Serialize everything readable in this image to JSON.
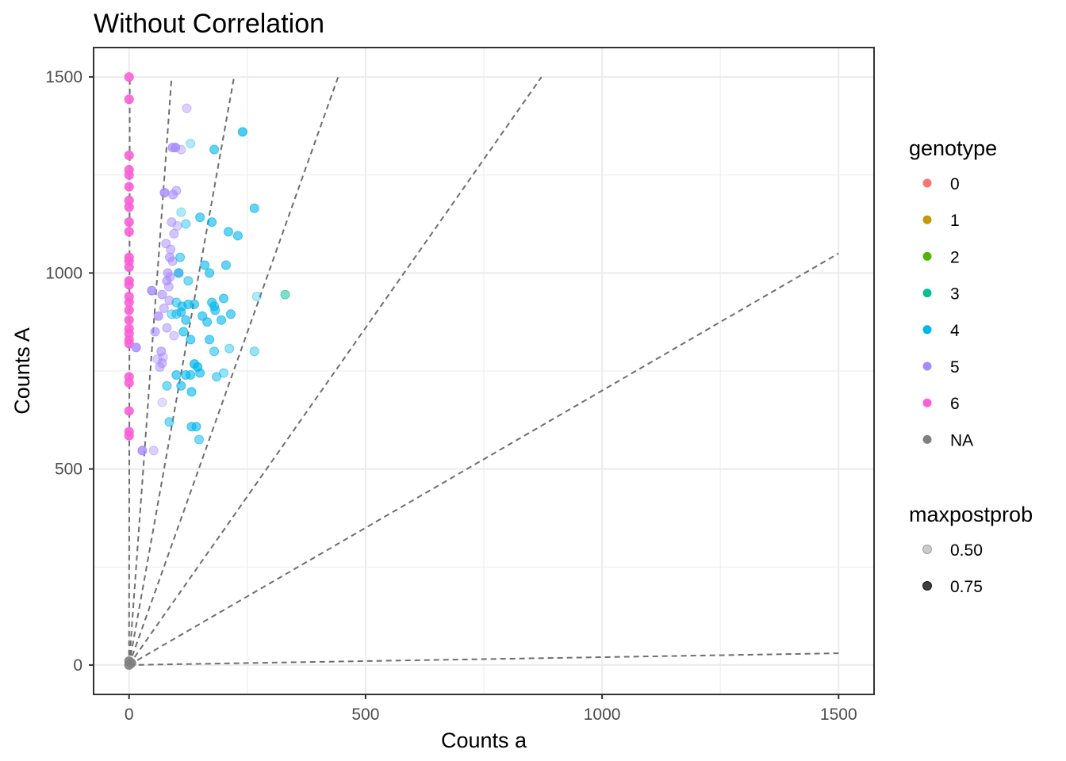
{
  "chart_data": {
    "type": "scatter",
    "title": "Without Correlation",
    "xlabel": "Counts a",
    "ylabel": "Counts A",
    "xlim": [
      -75,
      1575
    ],
    "ylim": [
      -75,
      1575
    ],
    "x_ticks": [
      0,
      500,
      1000,
      1500
    ],
    "y_ticks": [
      0,
      500,
      1000,
      1500
    ],
    "x_tick_labels": [
      "0",
      "500",
      "1000",
      "1500"
    ],
    "y_tick_labels": [
      "0",
      "500",
      "1000",
      "1500"
    ],
    "grid": true,
    "reference_lines": [
      {
        "x": [
          0,
          1.5
        ],
        "y": [
          0,
          1500
        ]
      },
      {
        "x": [
          0,
          90
        ],
        "y": [
          0,
          1500
        ]
      },
      {
        "x": [
          0,
          222
        ],
        "y": [
          0,
          1500
        ]
      },
      {
        "x": [
          0,
          442
        ],
        "y": [
          0,
          1500
        ]
      },
      {
        "x": [
          0,
          872
        ],
        "y": [
          0,
          1500
        ]
      },
      {
        "x": [
          0,
          1500
        ],
        "y": [
          0,
          1050
        ]
      },
      {
        "x": [
          0,
          1500
        ],
        "y": [
          0,
          30
        ]
      }
    ],
    "series": [
      {
        "name": "6",
        "points": [
          [
            0,
            1500,
            0.9
          ],
          [
            0,
            1443,
            0.9
          ],
          [
            0,
            1300,
            0.9
          ],
          [
            0,
            1263,
            0.9
          ],
          [
            0,
            1250,
            0.9
          ],
          [
            0,
            1220,
            0.9
          ],
          [
            0,
            1185,
            0.9
          ],
          [
            0,
            1168,
            0.9
          ],
          [
            0,
            1130,
            0.9
          ],
          [
            0,
            1105,
            0.9
          ],
          [
            0,
            1040,
            0.9
          ],
          [
            0,
            1030,
            0.9
          ],
          [
            0,
            1015,
            0.9
          ],
          [
            0,
            980,
            0.9
          ],
          [
            0,
            970,
            0.9
          ],
          [
            0,
            940,
            0.9
          ],
          [
            0,
            925,
            0.9
          ],
          [
            0,
            905,
            0.9
          ],
          [
            0,
            880,
            0.9
          ],
          [
            0,
            858,
            0.9
          ],
          [
            0,
            845,
            0.9
          ],
          [
            0,
            830,
            0.9
          ],
          [
            0,
            820,
            0.9
          ],
          [
            0,
            735,
            0.9
          ],
          [
            0,
            720,
            0.9
          ],
          [
            0,
            648,
            0.9
          ],
          [
            0,
            595,
            0.9
          ],
          [
            0,
            585,
            0.9
          ]
        ]
      },
      {
        "name": "5",
        "points": [
          [
            15,
            810,
            0.8
          ],
          [
            28,
            547,
            0.8
          ],
          [
            48,
            955,
            0.8
          ],
          [
            52,
            547,
            0.4
          ],
          [
            55,
            850,
            0.6
          ],
          [
            62,
            890,
            0.7
          ],
          [
            68,
            800,
            0.6
          ],
          [
            70,
            945,
            0.6
          ],
          [
            75,
            1205,
            0.8
          ],
          [
            78,
            1075,
            0.5
          ],
          [
            80,
            980,
            0.6
          ],
          [
            82,
            1000,
            0.6
          ],
          [
            84,
            965,
            0.5
          ],
          [
            86,
            1040,
            0.6
          ],
          [
            88,
            1060,
            0.5
          ],
          [
            90,
            1130,
            0.5
          ],
          [
            92,
            1320,
            0.7
          ],
          [
            93,
            1200,
            0.6
          ],
          [
            95,
            1100,
            0.5
          ],
          [
            98,
            1320,
            0.8
          ],
          [
            100,
            1210,
            0.5
          ],
          [
            102,
            1120,
            0.4
          ],
          [
            110,
            1315,
            0.4
          ],
          [
            122,
            1420,
            0.4
          ],
          [
            65,
            760,
            0.5
          ],
          [
            70,
            770,
            0.5
          ],
          [
            72,
            785,
            0.4
          ],
          [
            80,
            860,
            0.5
          ],
          [
            74,
            910,
            0.5
          ],
          [
            85,
            930,
            0.5
          ],
          [
            87,
            990,
            0.5
          ],
          [
            92,
            1030,
            0.5
          ],
          [
            105,
            1000,
            0.5
          ],
          [
            70,
            670,
            0.3
          ],
          [
            95,
            840,
            0.4
          ],
          [
            60,
            780,
            0.4
          ]
        ]
      },
      {
        "name": "4",
        "points": [
          [
            85,
            620,
            0.5
          ],
          [
            80,
            712,
            0.5
          ],
          [
            100,
            740,
            0.6
          ],
          [
            110,
            712,
            0.6
          ],
          [
            120,
            740,
            0.6
          ],
          [
            130,
            740,
            0.6
          ],
          [
            132,
            608,
            0.6
          ],
          [
            142,
            608,
            0.6
          ],
          [
            148,
            575,
            0.5
          ],
          [
            132,
            697,
            0.6
          ],
          [
            138,
            768,
            0.7
          ],
          [
            145,
            760,
            0.7
          ],
          [
            150,
            745,
            0.6
          ],
          [
            130,
            830,
            0.6
          ],
          [
            115,
            850,
            0.6
          ],
          [
            110,
            900,
            0.6
          ],
          [
            112,
            915,
            0.6
          ],
          [
            120,
            880,
            0.6
          ],
          [
            125,
            920,
            0.6
          ],
          [
            138,
            920,
            0.6
          ],
          [
            155,
            890,
            0.6
          ],
          [
            165,
            875,
            0.6
          ],
          [
            175,
            925,
            0.6
          ],
          [
            180,
            915,
            0.6
          ],
          [
            182,
            905,
            0.6
          ],
          [
            195,
            880,
            0.6
          ],
          [
            200,
            935,
            0.6
          ],
          [
            215,
            895,
            0.6
          ],
          [
            170,
            830,
            0.6
          ],
          [
            180,
            800,
            0.5
          ],
          [
            185,
            735,
            0.5
          ],
          [
            200,
            745,
            0.4
          ],
          [
            212,
            807,
            0.4
          ],
          [
            150,
            1142,
            0.6
          ],
          [
            160,
            1020,
            0.6
          ],
          [
            170,
            1000,
            0.6
          ],
          [
            175,
            1130,
            0.6
          ],
          [
            180,
            1315,
            0.6
          ],
          [
            205,
            1020,
            0.6
          ],
          [
            210,
            1105,
            0.6
          ],
          [
            230,
            1095,
            0.6
          ],
          [
            240,
            1360,
            0.7
          ],
          [
            265,
            1165,
            0.6
          ],
          [
            270,
            940,
            0.3
          ],
          [
            265,
            800,
            0.4
          ],
          [
            100,
            925,
            0.5
          ],
          [
            108,
            1040,
            0.5
          ],
          [
            125,
            980,
            0.5
          ],
          [
            110,
            1155,
            0.3
          ],
          [
            120,
            1125,
            0.4
          ],
          [
            130,
            1330,
            0.3
          ],
          [
            105,
            1000,
            0.6
          ],
          [
            90,
            895,
            0.4
          ],
          [
            100,
            895,
            0.5
          ]
        ]
      },
      {
        "name": "3",
        "points": [
          [
            330,
            945,
            0.5
          ]
        ]
      },
      {
        "name": "NA",
        "points": [
          [
            0,
            0,
            0.9
          ],
          [
            0,
            10,
            0.9
          ],
          [
            5,
            5,
            0.9
          ]
        ]
      }
    ],
    "legend": {
      "placement": "right",
      "color_title": "genotype",
      "color_entries": [
        {
          "label": "0",
          "color": "#F8766D"
        },
        {
          "label": "1",
          "color": "#C49A00"
        },
        {
          "label": "2",
          "color": "#53B400"
        },
        {
          "label": "3",
          "color": "#00C094"
        },
        {
          "label": "4",
          "color": "#00B6EB"
        },
        {
          "label": "5",
          "color": "#A58AFF"
        },
        {
          "label": "6",
          "color": "#FB61D7"
        },
        {
          "label": "NA",
          "color": "#7F7F7F"
        }
      ],
      "alpha_title": "maxpostprob",
      "alpha_entries": [
        {
          "label": "0.50",
          "alpha": 0.2
        },
        {
          "label": "0.75",
          "alpha": 0.75
        }
      ]
    }
  }
}
